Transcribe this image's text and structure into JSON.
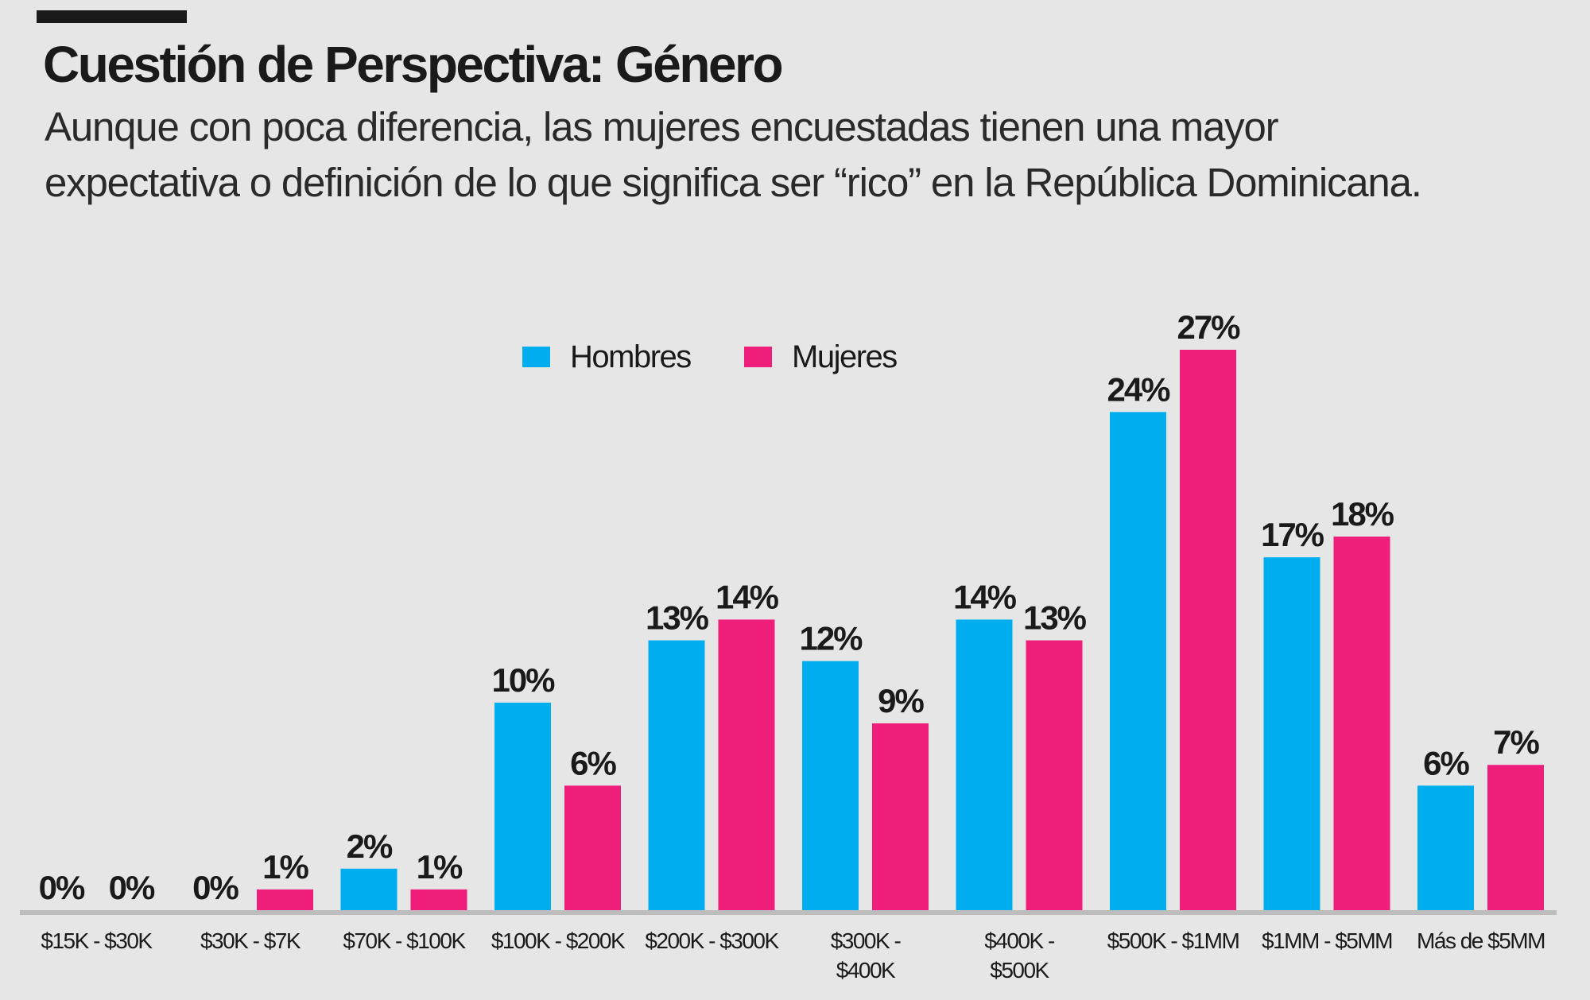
{
  "title": "Cuestión de Perspectiva: Género",
  "subtitle_lines": [
    "Aunque con poca diferencia, las mujeres encuestadas tienen una mayor",
    "expectativa o definición de lo que significa ser “rico” en la República Dominicana."
  ],
  "chart_data": {
    "type": "bar",
    "title": "",
    "xlabel": "",
    "ylabel": "",
    "ylim": [
      0,
      27
    ],
    "grid": false,
    "legend_position": "top-center",
    "categories": [
      [
        "$15K - $30K"
      ],
      [
        "$30K - $7K"
      ],
      [
        "$70K - $100K"
      ],
      [
        "$100K - $200K"
      ],
      [
        "$200K - $300K"
      ],
      [
        "$300K -",
        "$400K"
      ],
      [
        "$400K -",
        "$500K"
      ],
      [
        "$500K - $1MM"
      ],
      [
        "$1MM - $5MM"
      ],
      [
        "Más de $5MM"
      ]
    ],
    "series": [
      {
        "name": "Hombres",
        "color": "#00aeef",
        "values": [
          0,
          0,
          2,
          10,
          13,
          12,
          14,
          24,
          17,
          6
        ]
      },
      {
        "name": "Mujeres",
        "color": "#ee1e7a",
        "values": [
          0,
          1,
          1,
          6,
          14,
          9,
          13,
          27,
          18,
          7
        ]
      }
    ],
    "value_suffix": "%"
  }
}
